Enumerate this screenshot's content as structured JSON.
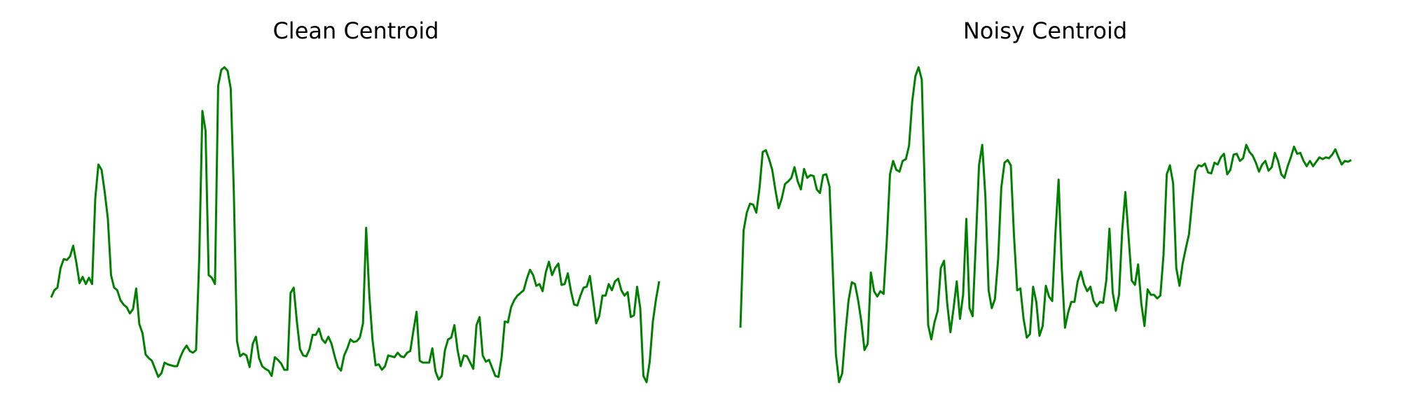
{
  "chart_data": [
    {
      "type": "line",
      "title": "Clean Centroid",
      "color": "#008000",
      "values": [
        107,
        115,
        118,
        140,
        150,
        149,
        153,
        165,
        146,
        123,
        130,
        122,
        129,
        122,
        218,
        256,
        250,
        225,
        195,
        132,
        118,
        115,
        104,
        99,
        96,
        89,
        94,
        117,
        77,
        67,
        43,
        39,
        36,
        27,
        18,
        22,
        34,
        32,
        31,
        30,
        30,
        40,
        48,
        53,
        47,
        45,
        48,
        150,
        316,
        294,
        132,
        129,
        122,
        344,
        362,
        365,
        361,
        341,
        225,
        58,
        41,
        44,
        42,
        29,
        55,
        63,
        39,
        30,
        27,
        25,
        19,
        40,
        37,
        33,
        26,
        26,
        112,
        118,
        80,
        49,
        42,
        41,
        49,
        65,
        65,
        72,
        60,
        56,
        63,
        55,
        41,
        29,
        25,
        42,
        50,
        60,
        57,
        58,
        62,
        78,
        185,
        110,
        60,
        31,
        32,
        26,
        30,
        42,
        41,
        40,
        45,
        41,
        40,
        45,
        47,
        70,
        91,
        36,
        34,
        34,
        34,
        50,
        24,
        15,
        19,
        48,
        60,
        62,
        76,
        48,
        30,
        42,
        41,
        34,
        27,
        76,
        85,
        42,
        35,
        37,
        28,
        19,
        18,
        40,
        80,
        79,
        96,
        104,
        109,
        112,
        115,
        128,
        138,
        132,
        120,
        122,
        114,
        135,
        147,
        132,
        140,
        145,
        121,
        122,
        134,
        114,
        99,
        98,
        109,
        118,
        119,
        131,
        105,
        78,
        86,
        109,
        109,
        122,
        115,
        125,
        128,
        115,
        109,
        113,
        85,
        87,
        119,
        95,
        19,
        12,
        35,
        80,
        105,
        125
      ]
    },
    {
      "type": "line",
      "title": "Noisy Centroid",
      "color": "#008000",
      "values": [
        73,
        182,
        202,
        212,
        211,
        202,
        230,
        270,
        272,
        262,
        250,
        227,
        207,
        218,
        234,
        237,
        241,
        253,
        237,
        228,
        251,
        241,
        244,
        243,
        228,
        224,
        244,
        245,
        231,
        140,
        43,
        12,
        22,
        67,
        104,
        124,
        122,
        104,
        80,
        48,
        55,
        135,
        114,
        108,
        114,
        111,
        170,
        245,
        260,
        250,
        248,
        260,
        262,
        277,
        327,
        355,
        365,
        351,
        220,
        76,
        60,
        79,
        92,
        140,
        148,
        100,
        68,
        95,
        125,
        83,
        110,
        195,
        95,
        86,
        170,
        255,
        278,
        220,
        115,
        95,
        105,
        150,
        230,
        258,
        261,
        255,
        175,
        115,
        117,
        83,
        62,
        66,
        119,
        102,
        64,
        75,
        120,
        108,
        103,
        178,
        239,
        140,
        73,
        90,
        102,
        102,
        125,
        136,
        122,
        114,
        119,
        103,
        97,
        102,
        101,
        126,
        184,
        113,
        92,
        110,
        182,
        225,
        175,
        126,
        121,
        144,
        100,
        75,
        116,
        110,
        110,
        106,
        109,
        155,
        245,
        255,
        235,
        140,
        120,
        145,
        162,
        178,
        215,
        249,
        255,
        254,
        257,
        247,
        246,
        258,
        256,
        264,
        268,
        245,
        250,
        267,
        268,
        260,
        263,
        278,
        270,
        266,
        258,
        248,
        256,
        260,
        249,
        253,
        269,
        260,
        245,
        241,
        254,
        264,
        276,
        268,
        269,
        260,
        254,
        260,
        254,
        259,
        264,
        262,
        264,
        263,
        267,
        273,
        264,
        256,
        260,
        259,
        261
      ]
    }
  ]
}
